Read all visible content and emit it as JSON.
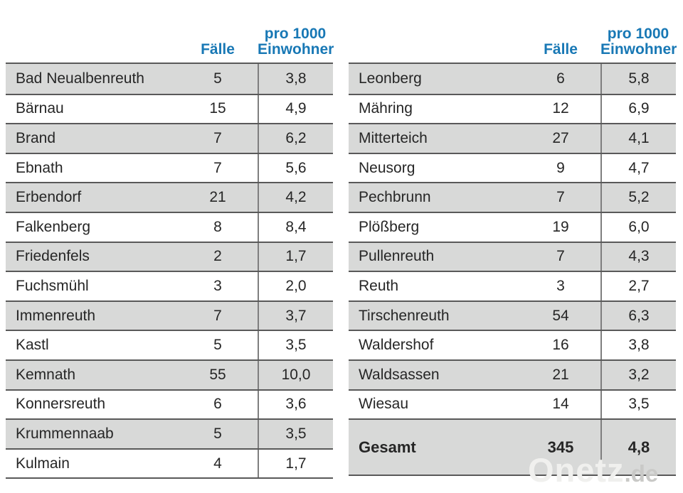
{
  "colors": {
    "header_blue": "#1878b5",
    "row_gray": "#d8d9d8",
    "line_dark": "#595959",
    "divider_gray": "#7e7e7e",
    "watermark_main": "#f0f0ee",
    "watermark_suffix": "#c9c9c7"
  },
  "columns_header": {
    "cases": "Fälle",
    "per1000_line1": "pro 1000",
    "per1000_line2": "Einwohner"
  },
  "watermark": {
    "main": "Onetz",
    "suffix": ".de"
  },
  "chart_data": {
    "type": "table",
    "title": "",
    "columns": [
      "Gemeinde",
      "Fälle",
      "pro 1000 Einwohner"
    ],
    "decimal_separator": ",",
    "layout": {
      "two_side_by_side_tables": true,
      "row_shading": "alternating gray/white starting gray",
      "total_row_position": "bottom of right table"
    },
    "left_rows": [
      {
        "name": "Bad Neualbenreuth",
        "cases": "5",
        "per1000": "3,8"
      },
      {
        "name": "Bärnau",
        "cases": "15",
        "per1000": "4,9"
      },
      {
        "name": "Brand",
        "cases": "7",
        "per1000": "6,2"
      },
      {
        "name": "Ebnath",
        "cases": "7",
        "per1000": "5,6"
      },
      {
        "name": "Erbendorf",
        "cases": "21",
        "per1000": "4,2"
      },
      {
        "name": "Falkenberg",
        "cases": "8",
        "per1000": "8,4"
      },
      {
        "name": "Friedenfels",
        "cases": "2",
        "per1000": "1,7"
      },
      {
        "name": "Fuchsmühl",
        "cases": "3",
        "per1000": "2,0"
      },
      {
        "name": "Immenreuth",
        "cases": "7",
        "per1000": "3,7"
      },
      {
        "name": "Kastl",
        "cases": "5",
        "per1000": "3,5"
      },
      {
        "name": "Kemnath",
        "cases": "55",
        "per1000": "10,0"
      },
      {
        "name": "Konnersreuth",
        "cases": "6",
        "per1000": "3,6"
      },
      {
        "name": "Krummennaab",
        "cases": "5",
        "per1000": "3,5"
      },
      {
        "name": "Kulmain",
        "cases": "4",
        "per1000": "1,7"
      }
    ],
    "right_rows": [
      {
        "name": "Leonberg",
        "cases": "6",
        "per1000": "5,8"
      },
      {
        "name": "Mähring",
        "cases": "12",
        "per1000": "6,9"
      },
      {
        "name": "Mitterteich",
        "cases": "27",
        "per1000": "4,1"
      },
      {
        "name": "Neusorg",
        "cases": "9",
        "per1000": "4,7"
      },
      {
        "name": "Pechbrunn",
        "cases": "7",
        "per1000": "5,2"
      },
      {
        "name": "Plößberg",
        "cases": "19",
        "per1000": "6,0"
      },
      {
        "name": "Pullenreuth",
        "cases": "7",
        "per1000": "4,3"
      },
      {
        "name": "Reuth",
        "cases": "3",
        "per1000": "2,7"
      },
      {
        "name": "Tirschenreuth",
        "cases": "54",
        "per1000": "6,3"
      },
      {
        "name": "Waldershof",
        "cases": "16",
        "per1000": "3,8"
      },
      {
        "name": "Waldsassen",
        "cases": "21",
        "per1000": "3,2"
      },
      {
        "name": "Wiesau",
        "cases": "14",
        "per1000": "3,5"
      }
    ],
    "total_row": {
      "name": "Gesamt",
      "cases": "345",
      "per1000": "4,8"
    }
  }
}
